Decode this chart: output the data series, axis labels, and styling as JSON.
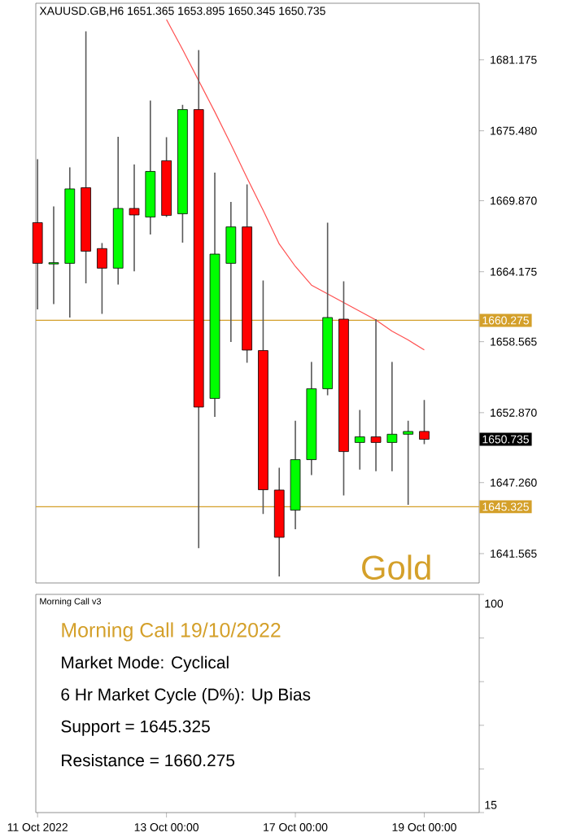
{
  "chart_data": [
    {
      "type": "candlestick",
      "title": "XAUUSD.GB,H6 1651.365 1653.895 1650.345 1650.735",
      "categories": [
        null,
        null,
        null,
        null,
        null,
        null,
        null,
        null,
        null,
        null,
        null,
        null,
        null,
        null,
        null,
        null,
        null,
        null,
        null,
        null,
        null,
        null,
        null,
        null,
        null
      ],
      "ohlc": [
        [
          1668.11,
          1673.21,
          1661.15,
          1664.85
        ],
        [
          1664.8,
          1669.42,
          1661.58,
          1664.9
        ],
        [
          1664.85,
          1672.55,
          1660.5,
          1670.82
        ],
        [
          1670.91,
          1683.45,
          1663.24,
          1665.82
        ],
        [
          1666.03,
          1666.47,
          1660.8,
          1664.46
        ],
        [
          1664.46,
          1675.0,
          1663.15,
          1669.25
        ],
        [
          1669.25,
          1672.78,
          1664.2,
          1668.73
        ],
        [
          1668.56,
          1677.91,
          1667.16,
          1672.22
        ],
        [
          1673.08,
          1674.96,
          1668.56,
          1668.69
        ],
        [
          1668.82,
          1677.57,
          1666.51,
          1677.18
        ],
        [
          1677.18,
          1681.96,
          1642.0,
          1653.32
        ],
        [
          1654.01,
          1672.12,
          1652.53,
          1665.59
        ],
        [
          1664.85,
          1669.77,
          1658.54,
          1667.77
        ],
        [
          1667.77,
          1671.17,
          1656.88,
          1657.89
        ],
        [
          1657.85,
          1663.47,
          1644.74,
          1646.69
        ],
        [
          1646.66,
          1648.45,
          1639.73,
          1642.87
        ],
        [
          1645.05,
          1652.23,
          1643.52,
          1649.1
        ],
        [
          1649.1,
          1656.94,
          1647.87,
          1654.79
        ],
        [
          1654.79,
          1668.11,
          1654.27,
          1660.5
        ],
        [
          1660.37,
          1663.41,
          1646.23,
          1649.75
        ],
        [
          1650.48,
          1653.09,
          1648.31,
          1650.93
        ],
        [
          1650.93,
          1660.37,
          1648.18,
          1650.48
        ],
        [
          1650.48,
          1656.94,
          1648.18,
          1651.14
        ],
        [
          1651.14,
          1652.23,
          1645.48,
          1651.36
        ],
        [
          1651.365,
          1653.895,
          1650.345,
          1650.735
        ]
      ],
      "colors": [
        "#ff0000",
        "#00ff00",
        "#00ff00",
        "#ff0000",
        "#ff0000",
        "#00ff00",
        "#ff0000",
        "#00ff00",
        "#ff0000",
        "#00ff00",
        "#ff0000",
        "#00ff00",
        "#00ff00",
        "#ff0000",
        "#ff0000",
        "#ff0000",
        "#00ff00",
        "#00ff00",
        "#00ff00",
        "#ff0000",
        "#00ff00",
        "#ff0000",
        "#00ff00",
        "#00ff00",
        "#ff0000"
      ],
      "series": [
        {
          "type": "line",
          "color": "#ff5050",
          "values": [
            null,
            null,
            null,
            null,
            null,
            null,
            null,
            null,
            1684.4,
            1682.0,
            1679.5,
            1677.0,
            1674.4,
            1671.7,
            1669.1,
            1666.4,
            1664.6,
            1663.1,
            1662.4,
            1661.7,
            1661.0,
            1660.3,
            1659.4,
            1658.7,
            1657.9
          ]
        }
      ],
      "ylim": [
        1639.21,
        1685.71
      ],
      "yticks": [
        1681.175,
        {
          "value": 1675.48,
          "label": "1675.480"
        },
        {
          "value": 1669.87,
          "label": "1669.870"
        },
        1664.175,
        1658.565,
        {
          "value": 1652.87,
          "label": "1652.870"
        },
        {
          "value": 1647.26,
          "label": "1647.260"
        },
        1641.565
      ],
      "ref_lines": [
        {
          "axis": "y",
          "value": 1660.275,
          "label": "1660.275",
          "color": "#d4a02a"
        },
        {
          "axis": "y",
          "value": 1645.325,
          "label": "1645.325",
          "color": "#d4a02a"
        }
      ],
      "annotations": [
        "1650.735",
        "Gold"
      ]
    },
    {
      "type": "other",
      "title": "Morning Call v3",
      "categories": [
        "11 Oct 2022",
        null,
        null,
        null,
        null,
        null,
        null,
        null,
        "13 Oct 00:00",
        null,
        null,
        null,
        null,
        null,
        null,
        null,
        "17 Oct 00:00",
        null,
        null,
        null,
        null,
        null,
        null,
        null,
        "19 Oct 00:00"
      ],
      "annotations": [
        "Morning Call 19/10/2022",
        "Market Mode: Cyclical",
        "6 Hr Market Cycle (D%): Up Bias",
        "Support = 1645.325",
        "Resistance = 1660.275",
        "100",
        "15"
      ]
    }
  ]
}
